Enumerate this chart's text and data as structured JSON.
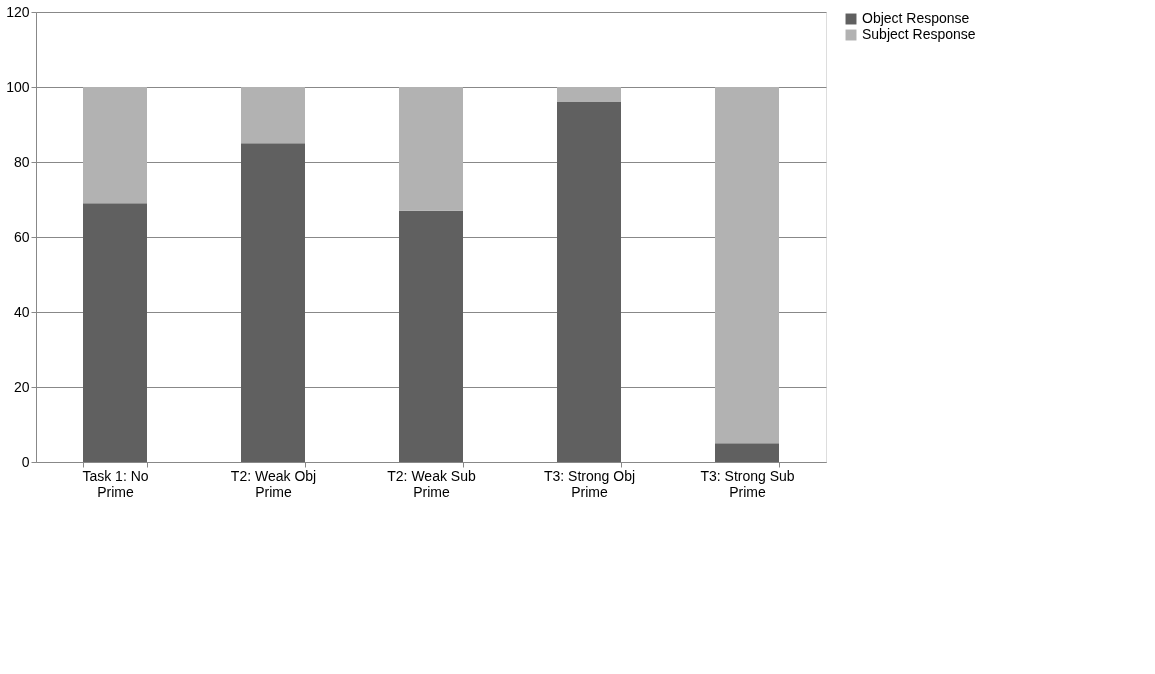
{
  "chart_data": {
    "type": "bar",
    "stacked": true,
    "categories": [
      "Task 1: No Prime",
      "T2: Weak Obj Prime",
      "T2: Weak Sub Prime",
      "T3: Strong Obj Prime",
      "T3: Strong Sub Prime"
    ],
    "series": [
      {
        "name": "Object Response",
        "color": "#606060",
        "values": [
          69,
          85,
          67,
          96,
          5
        ]
      },
      {
        "name": "Subject Response",
        "color": "#b2b2b2",
        "values": [
          31,
          15,
          33,
          4,
          95
        ]
      }
    ],
    "ylim": [
      0,
      120
    ],
    "yticks": [
      0,
      20,
      40,
      60,
      80,
      100,
      120
    ],
    "grid": "y",
    "legend": "right"
  }
}
